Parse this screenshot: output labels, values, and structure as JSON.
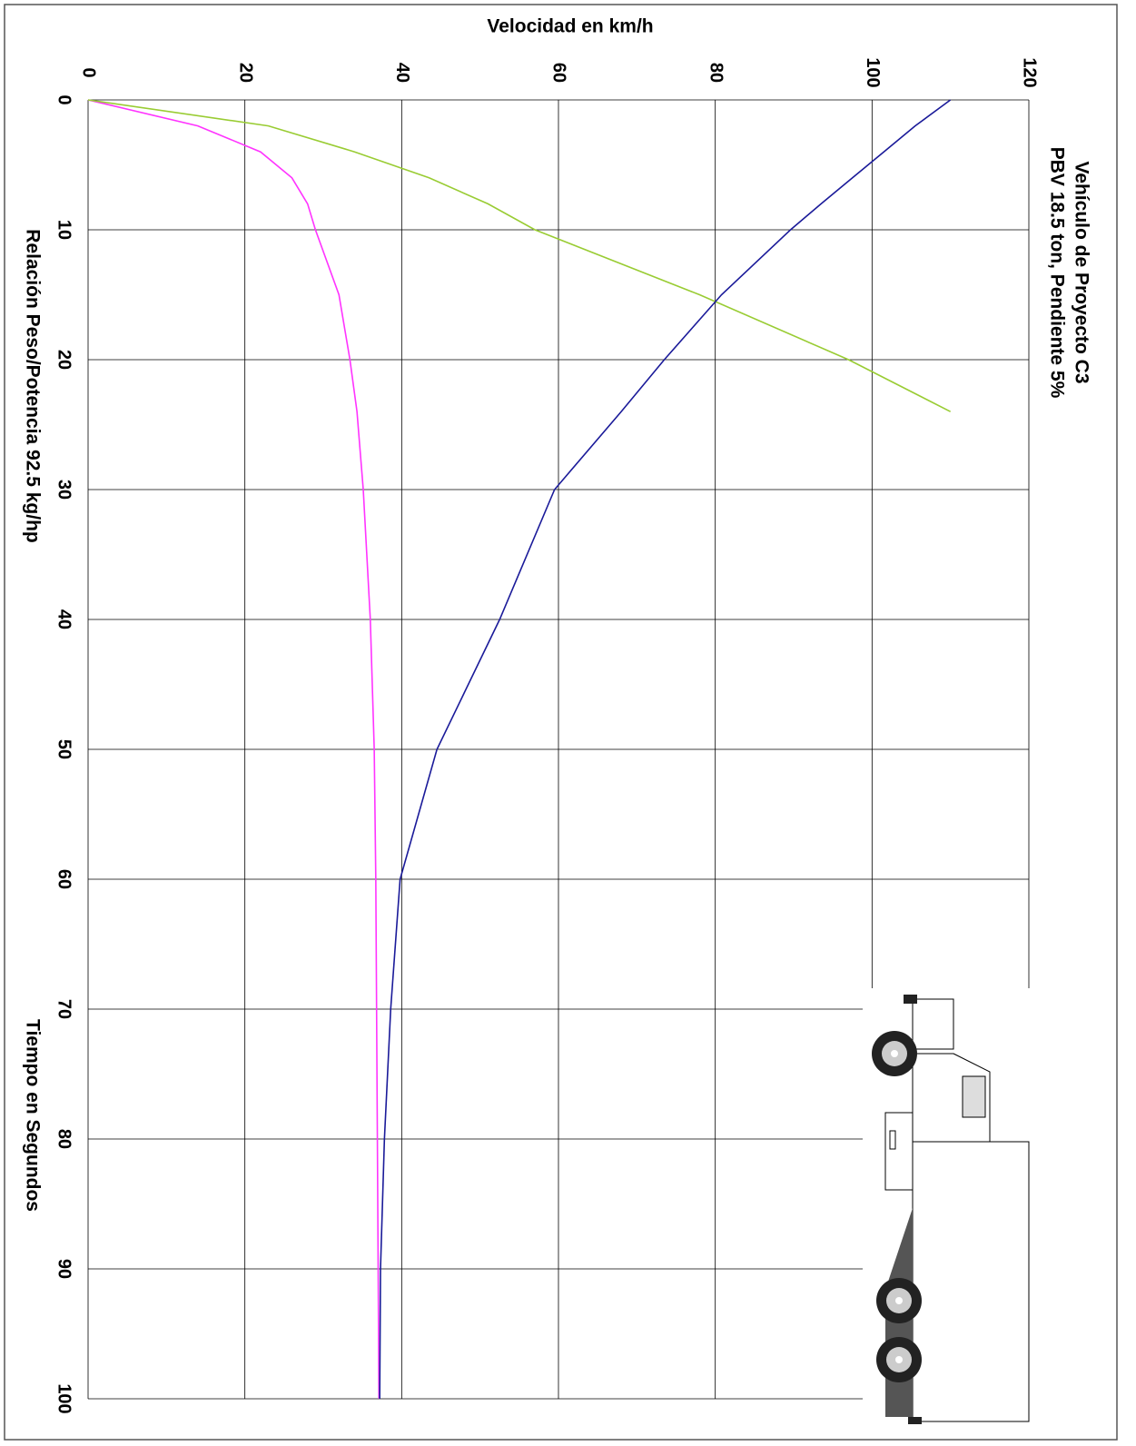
{
  "chart_data": {
    "type": "line",
    "title": "Vehículo de Proyecto C3",
    "subtitle": "PBV 18.5 ton, Pendiente  5%",
    "ylabel": "Velocidad en km/h",
    "xlabel": "Tiempo en Segundos",
    "annotation": "Relación Peso/Potencia 92.5 kg/hp",
    "x": [
      0,
      2,
      4,
      6,
      8,
      10,
      15,
      20,
      24,
      30,
      40,
      50,
      60,
      70,
      80,
      90,
      100
    ],
    "series": [
      {
        "color": "#ff33ff",
        "values": [
          0,
          14,
          22,
          26,
          28,
          29,
          32,
          33.4,
          34.3,
          35.1,
          36,
          36.5,
          36.7,
          36.8,
          36.9,
          37,
          37.1
        ]
      },
      {
        "color": "#99cc33",
        "values": [
          0,
          23,
          34,
          43.5,
          51,
          57,
          78,
          97,
          110,
          null,
          null,
          null,
          null,
          null,
          null,
          null,
          null
        ]
      },
      {
        "color": "#1a1a99",
        "values": [
          110,
          105.5,
          101.5,
          97.5,
          93.5,
          89.6,
          80.8,
          73.5,
          68,
          59.5,
          52.5,
          44.5,
          39.8,
          38.6,
          37.8,
          37.3,
          37.2
        ]
      }
    ],
    "xlim": [
      0,
      100
    ],
    "xticks": [
      0,
      10,
      20,
      30,
      40,
      50,
      60,
      70,
      80,
      90,
      100
    ],
    "ylim": [
      0,
      120
    ],
    "yticks": [
      0,
      20,
      40,
      60,
      80,
      100,
      120
    ],
    "grid": true
  }
}
